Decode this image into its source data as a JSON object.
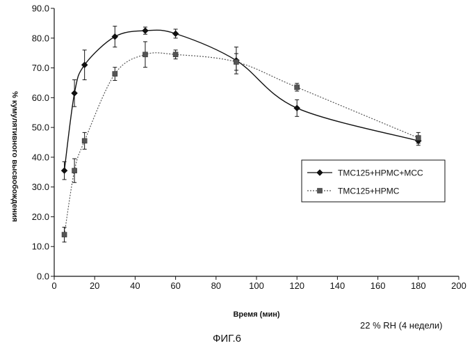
{
  "chart_data": {
    "type": "line",
    "title": "",
    "xlabel": "Время (мин)",
    "ylabel": "% кумулятивного высвобождения",
    "xlim": [
      0,
      200
    ],
    "ylim": [
      0,
      90
    ],
    "xticks": [
      0,
      20,
      40,
      60,
      80,
      100,
      120,
      140,
      160,
      180,
      200
    ],
    "yticks": [
      0,
      10,
      20,
      30,
      40,
      50,
      60,
      70,
      80,
      90
    ],
    "xtick_labels": [
      "0",
      "20",
      "40",
      "60",
      "80",
      "100",
      "120",
      "140",
      "160",
      "180",
      "200"
    ],
    "ytick_labels": [
      "0.0",
      "10.0",
      "20.0",
      "30.0",
      "40.0",
      "50.0",
      "60.0",
      "70.0",
      "80.0",
      "90.0"
    ],
    "grid": false,
    "legend_position": "right",
    "series": [
      {
        "name": "TMC125+HPMC+MCC",
        "marker": "diamond",
        "line": "solid",
        "color": "#111111",
        "x": [
          5,
          10,
          15,
          30,
          45,
          60,
          90,
          120,
          180
        ],
        "y": [
          35.5,
          61.5,
          71.0,
          80.5,
          82.5,
          81.5,
          72.5,
          56.5,
          45.5
        ],
        "err": [
          3.0,
          4.5,
          5.0,
          3.5,
          1.2,
          1.5,
          4.5,
          2.8,
          1.5
        ]
      },
      {
        "name": "TMC125+HPMC",
        "marker": "square",
        "line": "dotted",
        "color": "#555555",
        "x": [
          5,
          10,
          15,
          30,
          45,
          60,
          90,
          120,
          180
        ],
        "y": [
          14.0,
          35.5,
          45.5,
          68.0,
          74.5,
          74.5,
          72.0,
          63.5,
          46.5
        ],
        "err": [
          2.5,
          4.0,
          2.8,
          2.2,
          4.3,
          1.5,
          2.8,
          1.3,
          1.8
        ]
      }
    ]
  },
  "notes": {
    "condition": "22 % RH (4 недели)",
    "caption": "ФИГ.6"
  }
}
